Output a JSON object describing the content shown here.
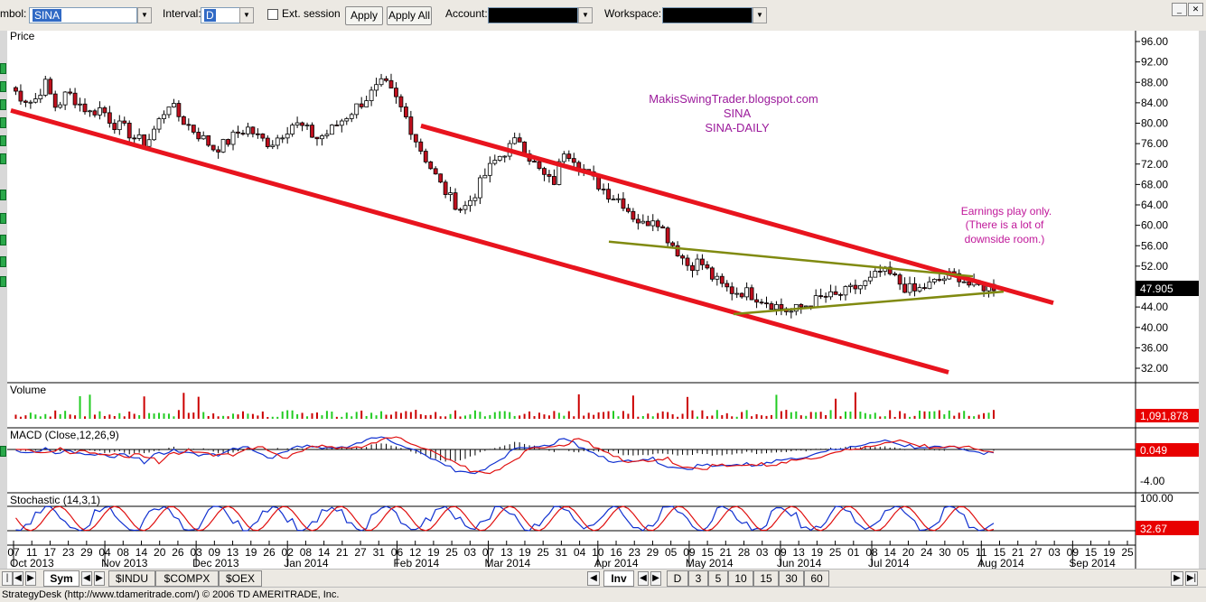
{
  "toolbar": {
    "symbol_label": "mbol:",
    "symbol_value": "SINA",
    "interval_label": "Interval:",
    "interval_value": "D",
    "ext_session": "Ext. session",
    "apply": "Apply",
    "apply_all": "Apply All",
    "account_label": "Account:",
    "account_value": "                       ",
    "workspace_label": "Workspace:",
    "workspace_value": "                 "
  },
  "bottom": {
    "sym": "Sym",
    "tabs": [
      "$INDU",
      "$COMPX",
      "$OEX"
    ],
    "inv": "Inv",
    "periods": [
      "D",
      "3",
      "5",
      "10",
      "15",
      "30",
      "60"
    ]
  },
  "status": "StrategyDesk (http://www.tdameritrade.com/) © 2006 TD AMERITRADE, Inc.",
  "colors": {
    "up": "#ffffff",
    "down": "#c0101e",
    "trend": "#e8141e",
    "triangle": "#808a10",
    "watermark": "#9b1a9b",
    "macd": "#1030d0",
    "signal": "#e01010",
    "vol_up": "#22cc22",
    "vol_down": "#cc0000"
  },
  "annotations": {
    "watermark": [
      "MakisSwingTrader.blogspot.com",
      "SINA",
      "SINA-DAILY"
    ],
    "note": [
      "Earnings play only.",
      "(There is a lot of",
      "downside room.)"
    ]
  },
  "chart_data": {
    "type": "candlestick",
    "panes": {
      "price": {
        "title": "Price",
        "ylim": [
          30,
          98
        ],
        "yticks": [
          "96.00",
          "92.00",
          "88.00",
          "84.00",
          "80.00",
          "76.00",
          "72.00",
          "68.00",
          "64.00",
          "60.00",
          "56.00",
          "52.00",
          "48.00",
          "44.00",
          "40.00",
          "36.00",
          "32.00"
        ],
        "last": "47.905"
      },
      "volume": {
        "title": "Volume",
        "last": "1,091,878"
      },
      "macd": {
        "title": "MACD (Close,12,26,9)",
        "last": "0.049",
        "ytick": "-4.00"
      },
      "stochastic": {
        "title": "Stochastic (14,3,1)",
        "ytop": "100.00",
        "last": "32.67"
      }
    },
    "dates": {
      "days": [
        "07",
        "11",
        "17",
        "23",
        "29",
        "04",
        "08",
        "14",
        "20",
        "26",
        "03",
        "09",
        "13",
        "19",
        "26",
        "02",
        "08",
        "14",
        "21",
        "27",
        "31",
        "06",
        "12",
        "19",
        "25",
        "03",
        "07",
        "13",
        "19",
        "25",
        "31",
        "04",
        "10",
        "16",
        "23",
        "29",
        "05",
        "09",
        "15",
        "21",
        "28",
        "03",
        "09",
        "13",
        "19",
        "25",
        "01",
        "08",
        "14",
        "20",
        "24",
        "30",
        "05",
        "11",
        "15",
        "21",
        "27",
        "03",
        "09",
        "15",
        "19",
        "25"
      ],
      "months": [
        "Oct 2013",
        "Nov 2013",
        "Dec 2013",
        "Jan 2014",
        "Feb 2014",
        "Mar 2014",
        "Apr 2014",
        "May 2014",
        "Jun 2014",
        "Jul 2014",
        "Aug 2014",
        "Sep 2014"
      ],
      "month_day_index": [
        0,
        5,
        10,
        15,
        21,
        26,
        32,
        37,
        42,
        47,
        53,
        58
      ]
    },
    "close_path": [
      87,
      85,
      84,
      88,
      83,
      86,
      84,
      82,
      83,
      80,
      79,
      77,
      76,
      80,
      84,
      81,
      79,
      77,
      75,
      76,
      78,
      79,
      77,
      76,
      78,
      80,
      79,
      77,
      78,
      80,
      82,
      84,
      86,
      88,
      85,
      81,
      76,
      72,
      68,
      65,
      63,
      66,
      70,
      73,
      75,
      77,
      73,
      70,
      68,
      75,
      73,
      70,
      68,
      66,
      65,
      62,
      60,
      62,
      58,
      55,
      52,
      53,
      50,
      48,
      47,
      47,
      46,
      45,
      44,
      43,
      44,
      45,
      46,
      46,
      47,
      48,
      49,
      51,
      50,
      48,
      47,
      48,
      49,
      50,
      50,
      48,
      48,
      48
    ]
  }
}
